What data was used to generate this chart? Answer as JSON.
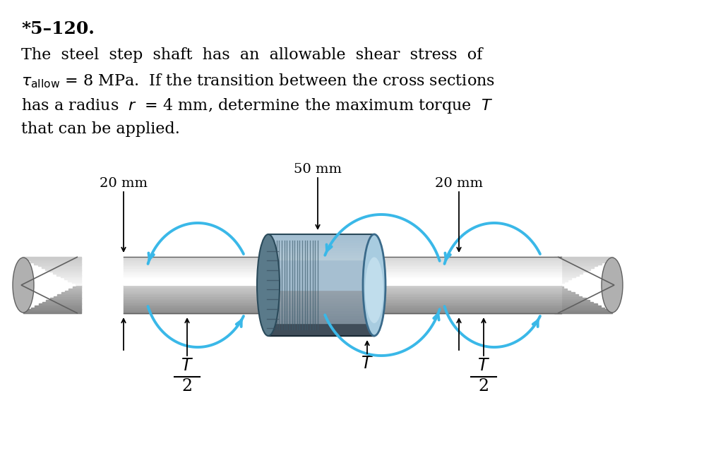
{
  "bg_color": "#ffffff",
  "title_text": "*5–120.",
  "title_fontsize": 18,
  "body_lines": [
    "The  steel  step  shaft  has  an  allowable  shear  stress  of",
    "τₐₗₗₒᵂ = 8 MPa.  If the transition between the cross sections",
    "has a radius  r  = 4 mm, determine the maximum torque  T",
    "that can be applied."
  ],
  "body_fontsize": 16,
  "arrow_color": "#3ab8e8",
  "shaft_light": "#d8d8d8",
  "shaft_mid": "#b0b0b0",
  "shaft_dark": "#888888",
  "shaft_darker": "#606060",
  "hub_blue_light": "#c0dff0",
  "hub_blue_mid": "#85c0dc",
  "hub_blue_dark": "#4a90b8",
  "hub_gray_light": "#c8c8c8",
  "hub_gray_mid": "#909090",
  "hub_gray_dark": "#606060"
}
